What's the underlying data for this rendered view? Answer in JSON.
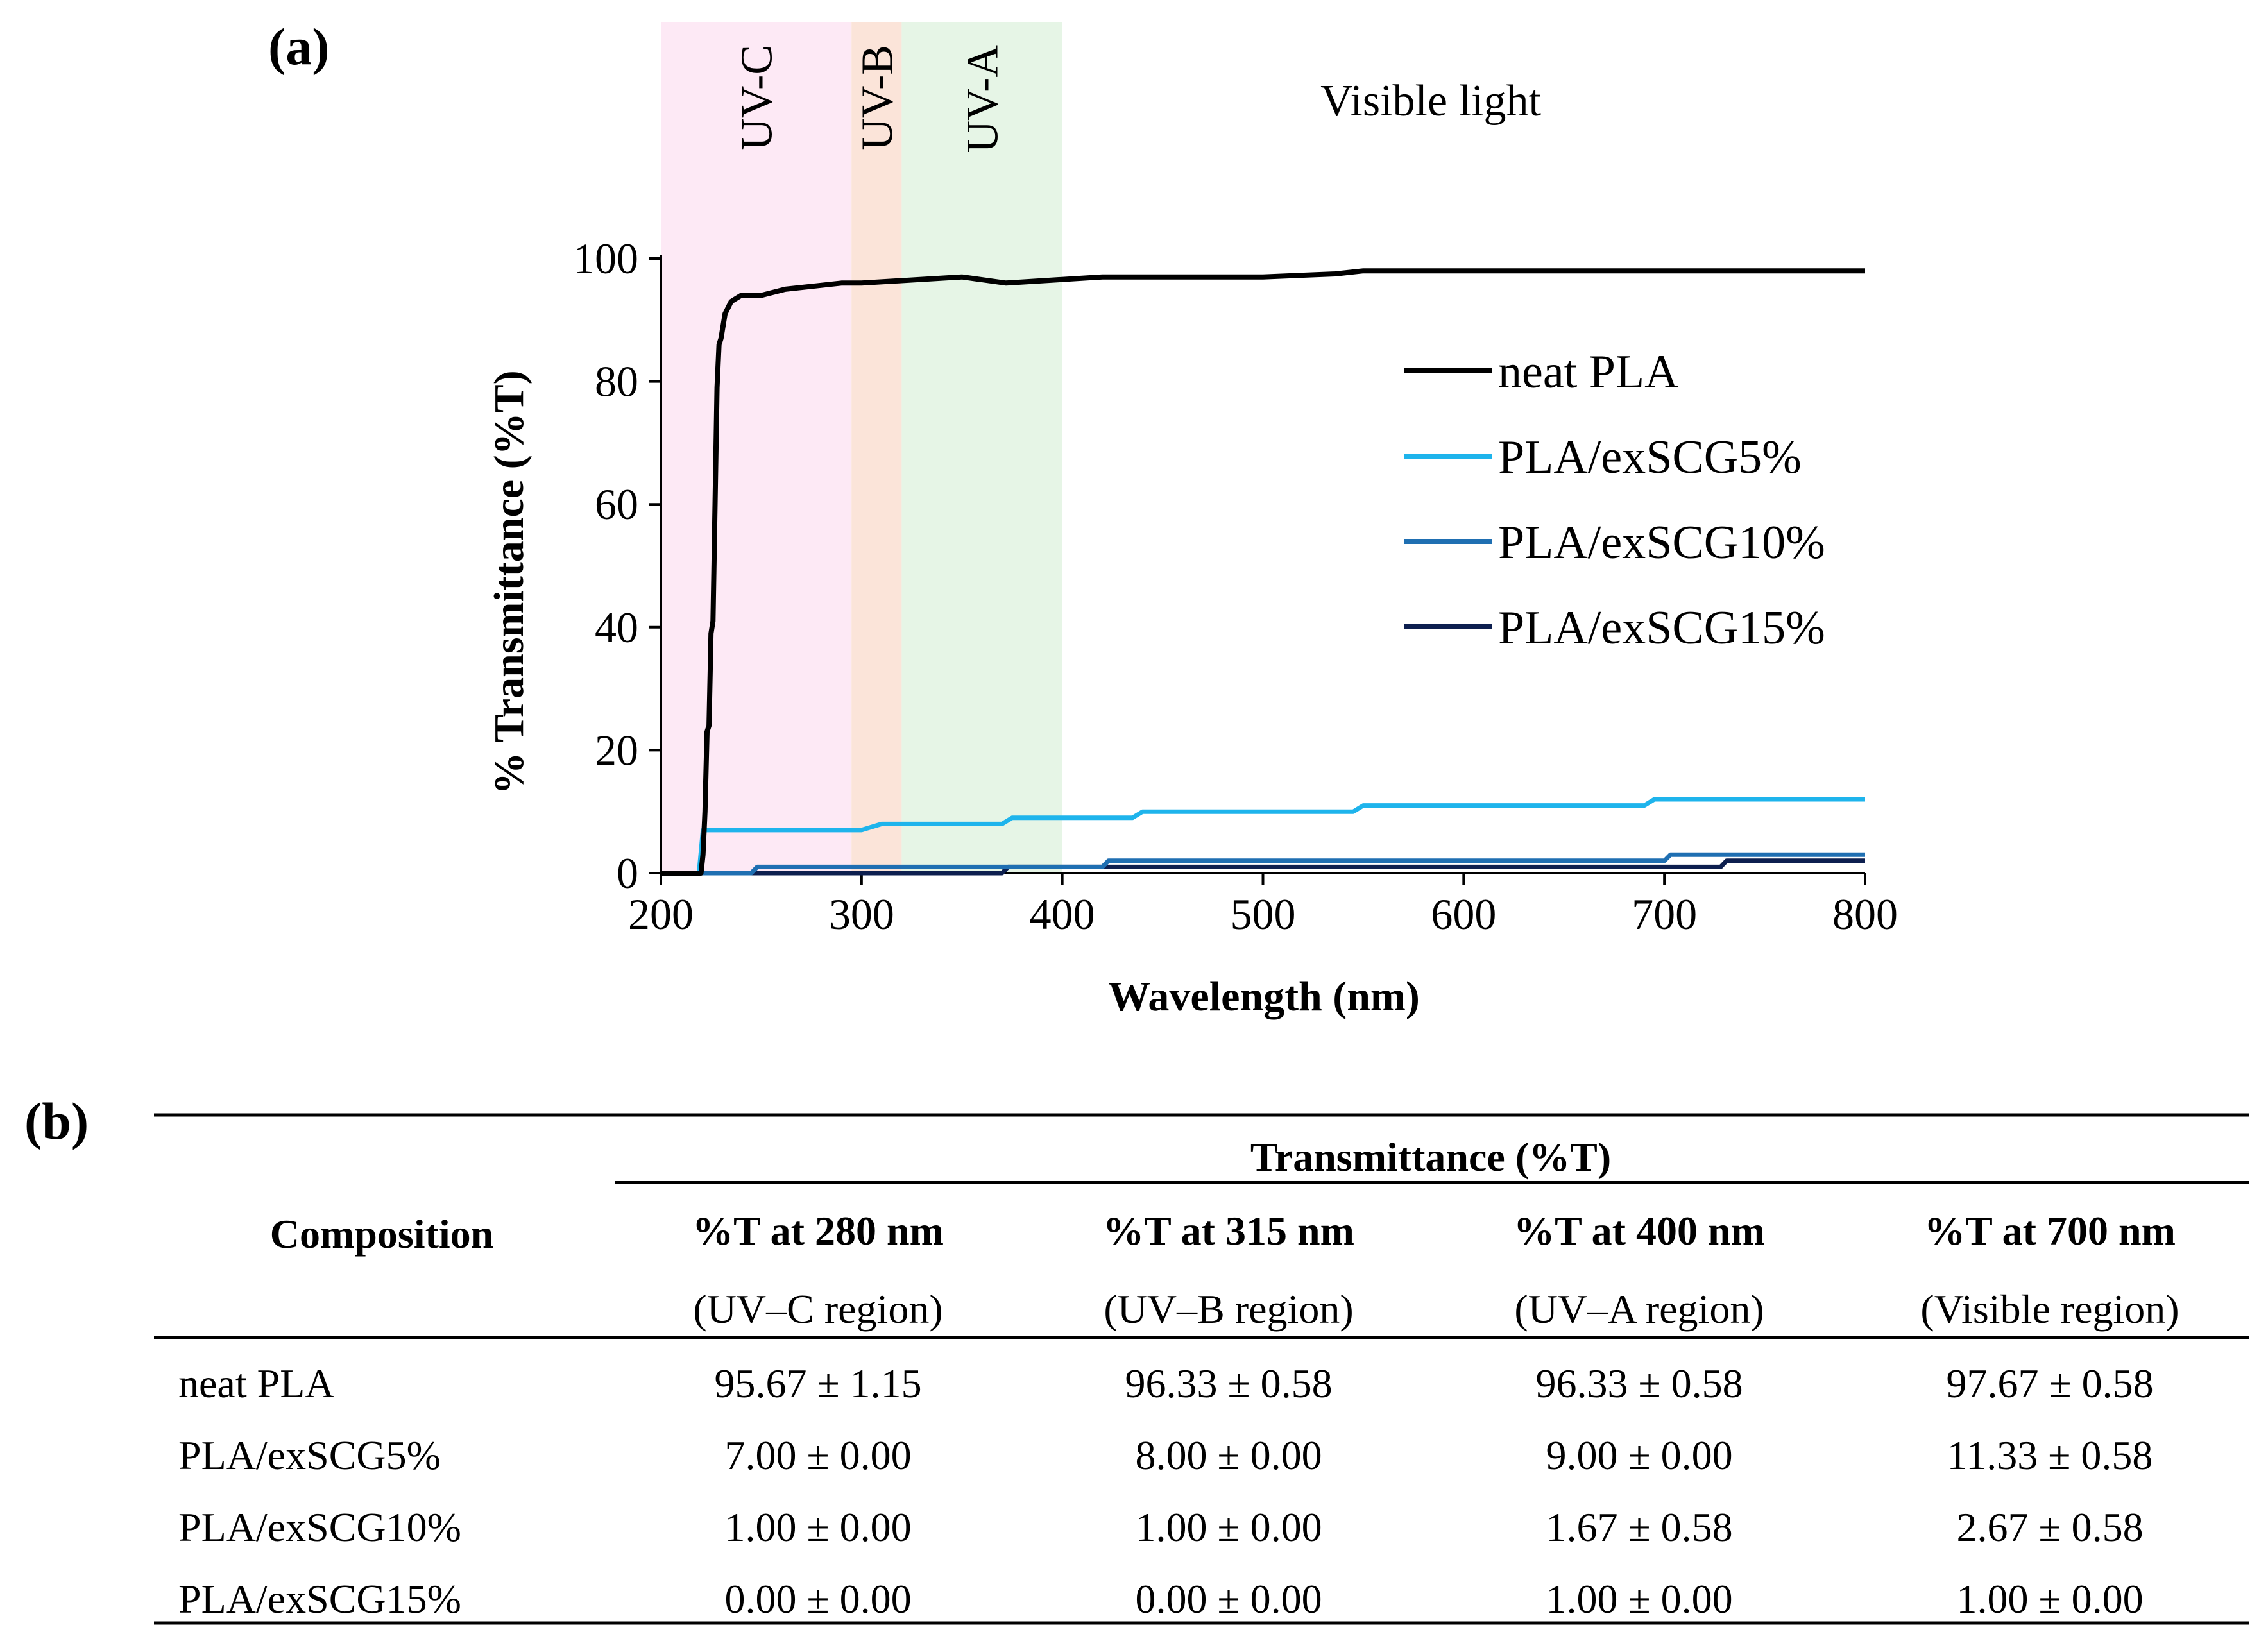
{
  "panel_a": {
    "label": "(a)"
  },
  "panel_b": {
    "label": "(b)"
  },
  "chart_data": {
    "type": "line",
    "title": "",
    "xlabel": "Wavelength (nm)",
    "ylabel": "% Transmittance (%T)",
    "xlim": [
      200,
      800
    ],
    "ylim": [
      0,
      100
    ],
    "xticks": [
      200,
      300,
      400,
      500,
      600,
      700,
      800
    ],
    "yticks": [
      0,
      20,
      40,
      60,
      80,
      100
    ],
    "regions": [
      {
        "name": "UV-C",
        "from": 200,
        "to": 295,
        "color": "#fde9f5"
      },
      {
        "name": "UV-B",
        "from": 295,
        "to": 320,
        "color": "#fbe4d9"
      },
      {
        "name": "UV-A",
        "from": 320,
        "to": 400,
        "color": "#e6f5e6"
      },
      {
        "name": "Visible light",
        "from": 400,
        "to": 800,
        "color": "#ffffff"
      }
    ],
    "series": [
      {
        "name": "neat PLA",
        "color": "#000000",
        "x": [
          200,
          220,
          221,
          222,
          223,
          224,
          225,
          226,
          227,
          228,
          229,
          230,
          232,
          235,
          240,
          245,
          250,
          262,
          290,
          300,
          350,
          372,
          420,
          500,
          536,
          550,
          800
        ],
        "y": [
          0,
          0,
          3,
          10,
          23,
          24,
          39,
          41,
          60,
          79,
          86,
          87,
          91,
          93,
          94,
          94,
          94,
          95,
          96,
          96,
          97,
          96,
          97,
          97,
          97.5,
          98,
          98
        ]
      },
      {
        "name": "PLA/exSCG5%",
        "color": "#1eb4ec",
        "x": [
          200,
          219,
          221,
          224,
          300,
          310,
          370,
          375,
          435,
          440,
          545,
          550,
          690,
          695,
          800
        ],
        "y": [
          0,
          0,
          7,
          7,
          7,
          8,
          8,
          9,
          9,
          10,
          10,
          11,
          11,
          12,
          12
        ]
      },
      {
        "name": "PLA/exSCG10%",
        "color": "#1f6fb2",
        "x": [
          200,
          245,
          248,
          420,
          423,
          700,
          703,
          800
        ],
        "y": [
          0,
          0,
          1,
          1,
          2,
          2,
          3,
          3
        ]
      },
      {
        "name": "PLA/exSCG15%",
        "color": "#0d1f4f",
        "x": [
          200,
          370,
          373,
          728,
          731,
          800
        ],
        "y": [
          0,
          0,
          1,
          1,
          2,
          2
        ]
      }
    ]
  },
  "table": {
    "group_header": "Transmittance (%T)",
    "composition_header": "Composition",
    "columns": [
      {
        "title": "%T at 280 nm",
        "sub": "(UV–C region)"
      },
      {
        "title": "%T at 315 nm",
        "sub": "(UV–B region)"
      },
      {
        "title": "%T at 400 nm",
        "sub": "(UV–A region)"
      },
      {
        "title": "%T at 700 nm",
        "sub": "(Visible region)"
      }
    ],
    "rows": [
      {
        "name": "neat PLA",
        "values": [
          "95.67 ± 1.15",
          "96.33 ± 0.58",
          "96.33 ± 0.58",
          "97.67 ± 0.58"
        ]
      },
      {
        "name": "PLA/exSCG5%",
        "values": [
          "7.00 ± 0.00",
          "8.00 ± 0.00",
          "9.00 ± 0.00",
          "11.33 ± 0.58"
        ]
      },
      {
        "name": "PLA/exSCG10%",
        "values": [
          "1.00 ± 0.00",
          "1.00 ± 0.00",
          "1.67 ± 0.58",
          "2.67 ± 0.58"
        ]
      },
      {
        "name": "PLA/exSCG15%",
        "values": [
          "0.00 ± 0.00",
          "0.00 ± 0.00",
          "1.00 ± 0.00",
          "1.00 ± 0.00"
        ]
      }
    ]
  }
}
